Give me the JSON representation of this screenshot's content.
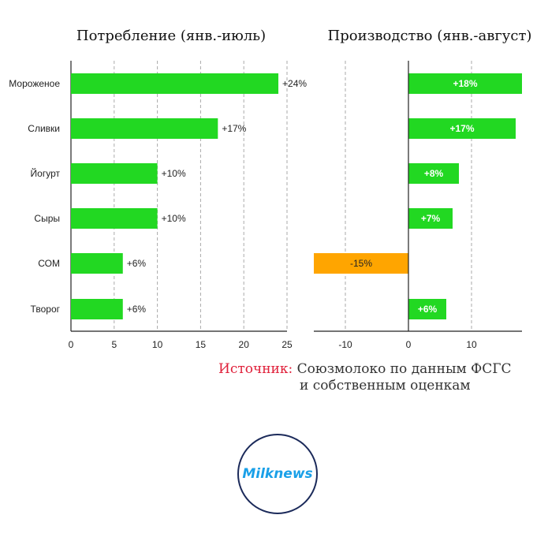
{
  "chart_data": [
    {
      "type": "bar",
      "orientation": "horizontal",
      "title": "Потребление (янв.-июль)",
      "categories": [
        "Мороженое",
        "Сливки",
        "Йогурт",
        "Сыры",
        "СОМ",
        "Творог"
      ],
      "values": [
        24,
        17,
        10,
        10,
        6,
        6
      ],
      "labels": [
        "+24%",
        "+17%",
        "+10%",
        "+10%",
        "+6%",
        "+6%"
      ],
      "xlim": [
        0,
        25
      ],
      "xticks": [
        "0",
        "5",
        "10",
        "15",
        "20",
        "25"
      ],
      "grid": true,
      "bar_color": "#22d822"
    },
    {
      "type": "bar",
      "orientation": "horizontal",
      "title": "Производство (янв.-август)",
      "categories": [
        "Мороженое",
        "Сливки",
        "Йогурт",
        "Сыры",
        "СОМ",
        "Творог"
      ],
      "values": [
        18,
        17,
        8,
        7,
        -15,
        6
      ],
      "labels": [
        "+18%",
        "+17%",
        "+8%",
        "+7%",
        "-15%",
        "+6%"
      ],
      "xlim": [
        -15,
        18
      ],
      "xticks": [
        "-10",
        "0",
        "10"
      ],
      "grid": true,
      "bar_color": "#22d822",
      "negative_color": "#ffa500"
    }
  ],
  "source": {
    "label": "Источник:",
    "line1": " Союзмолоко по данным ФСГС",
    "line2": "и собственным оценкам"
  },
  "logo": {
    "text": "Milknews"
  }
}
